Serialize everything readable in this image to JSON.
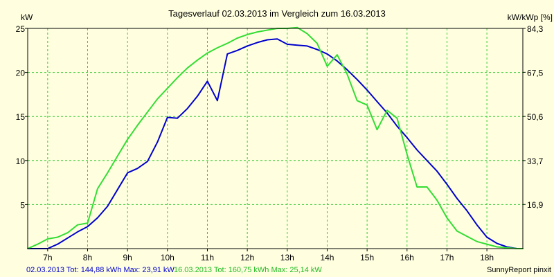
{
  "chart_data": {
    "type": "line",
    "title": "Tagesverlauf 02.03.2013 im Vergleich zum 16.03.2013",
    "ylabel_left": "kW",
    "ylabel_right": "kW/kWp [%]",
    "x_ticks": [
      "7h",
      "8h",
      "9h",
      "10h",
      "11h",
      "12h",
      "13h",
      "14h",
      "15h",
      "16h",
      "17h",
      "18h"
    ],
    "x_tick_values": [
      7,
      8,
      9,
      10,
      11,
      12,
      13,
      14,
      15,
      16,
      17,
      18
    ],
    "xlim": [
      6.5,
      18.9
    ],
    "ylim_left": [
      0,
      25
    ],
    "y_ticks_left": [
      5,
      10,
      15,
      20,
      25
    ],
    "ylim_right": [
      0,
      84.3
    ],
    "y_ticks_right": [
      "16,9",
      "33,7",
      "50,6",
      "67,5",
      "84,3"
    ],
    "y_tick_values_right": [
      16.9,
      33.7,
      50.6,
      67.5,
      84.3
    ],
    "grid": true,
    "series": [
      {
        "name": "02.03.2013",
        "color": "#0000cc",
        "x": [
          6.5,
          6.75,
          7.0,
          7.25,
          7.5,
          7.75,
          8.0,
          8.25,
          8.5,
          8.75,
          9.0,
          9.25,
          9.5,
          9.75,
          10.0,
          10.25,
          10.5,
          10.75,
          11.0,
          11.25,
          11.5,
          11.75,
          12.0,
          12.25,
          12.5,
          12.75,
          13.0,
          13.25,
          13.5,
          13.75,
          14.0,
          14.25,
          14.5,
          14.75,
          15.0,
          15.25,
          15.5,
          15.75,
          16.0,
          16.25,
          16.5,
          16.75,
          17.0,
          17.25,
          17.5,
          17.75,
          18.0,
          18.25,
          18.5,
          18.75,
          18.9
        ],
        "values": [
          0,
          0,
          0,
          0.5,
          1.2,
          1.9,
          2.5,
          3.5,
          4.8,
          6.7,
          8.6,
          9.1,
          9.9,
          12.1,
          14.9,
          14.8,
          15.9,
          17.3,
          19.0,
          16.8,
          22.1,
          22.5,
          23.0,
          23.4,
          23.7,
          23.8,
          23.2,
          23.1,
          23.0,
          22.6,
          22.1,
          21.3,
          20.3,
          19.2,
          18.0,
          16.7,
          15.4,
          13.9,
          12.6,
          11.2,
          10.0,
          8.8,
          7.3,
          5.7,
          4.3,
          2.7,
          1.3,
          0.6,
          0.2,
          0,
          0
        ]
      },
      {
        "name": "16.03.2013",
        "color": "#33dd33",
        "x": [
          6.5,
          6.75,
          7.0,
          7.25,
          7.5,
          7.75,
          8.0,
          8.25,
          8.5,
          8.75,
          9.0,
          9.25,
          9.5,
          9.75,
          10.0,
          10.25,
          10.5,
          10.75,
          11.0,
          11.25,
          11.5,
          11.75,
          12.0,
          12.25,
          12.5,
          12.75,
          13.0,
          13.25,
          13.5,
          13.75,
          14.0,
          14.25,
          14.5,
          14.75,
          15.0,
          15.25,
          15.5,
          15.75,
          16.0,
          16.25,
          16.5,
          16.75,
          17.0,
          17.25,
          17.5,
          17.75,
          18.0,
          18.25,
          18.5,
          18.75,
          18.9
        ],
        "values": [
          0,
          0.5,
          1.1,
          1.3,
          1.8,
          2.7,
          2.9,
          6.8,
          8.6,
          10.5,
          12.4,
          14.0,
          15.5,
          17.0,
          18.2,
          19.4,
          20.5,
          21.4,
          22.2,
          22.8,
          23.3,
          23.9,
          24.3,
          24.6,
          24.8,
          25.0,
          25.0,
          25.1,
          24.4,
          23.3,
          20.7,
          22.0,
          19.8,
          16.8,
          16.3,
          13.5,
          15.7,
          14.8,
          10.7,
          7.0,
          7.0,
          5.5,
          3.5,
          2.0,
          1.4,
          0.8,
          0.5,
          0.2,
          0.1,
          0,
          0
        ]
      }
    ]
  },
  "footer": {
    "series1_text": "02.03.2013 Tot: 144,88 kWh Max: 23,91 kW",
    "series2_text": "16.03.2013 Tot: 160,75 kWh Max: 25,14 kW",
    "credit": "SunnyReport pinxit"
  }
}
